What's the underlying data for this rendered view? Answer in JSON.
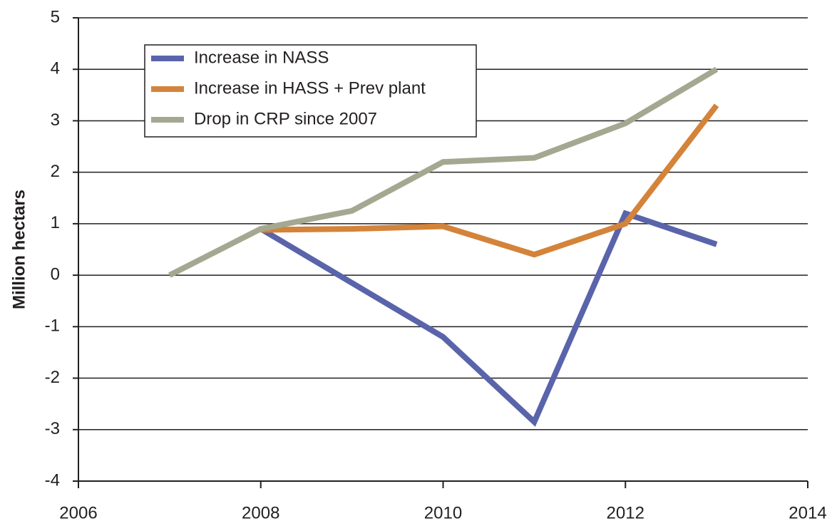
{
  "chart_data": {
    "type": "line",
    "y_label": "Million hectars",
    "x": [
      2007,
      2008,
      2009,
      2010,
      2011,
      2012,
      2013
    ],
    "series": [
      {
        "name": "Increase in NASS",
        "color": "#5a64ab",
        "values": [
          null,
          0.9,
          -0.15,
          -1.2,
          -2.85,
          1.2,
          0.6
        ]
      },
      {
        "name": "Increase in HASS + Prev plant",
        "color": "#d4833a",
        "values": [
          null,
          0.88,
          0.9,
          0.95,
          0.4,
          1.0,
          3.3
        ]
      },
      {
        "name": "Drop in CRP since 2007",
        "color": "#a4a891",
        "values": [
          0,
          0.9,
          1.25,
          2.2,
          2.28,
          2.95,
          4.0
        ]
      }
    ],
    "xlim": [
      2006,
      2014
    ],
    "xticks": [
      2006,
      2008,
      2010,
      2012,
      2014
    ],
    "ylim": [
      -4,
      5
    ],
    "yticks": [
      -4,
      -3,
      -2,
      -1,
      0,
      1,
      2,
      3,
      4,
      5
    ],
    "grid": true,
    "legend": "upper left"
  }
}
